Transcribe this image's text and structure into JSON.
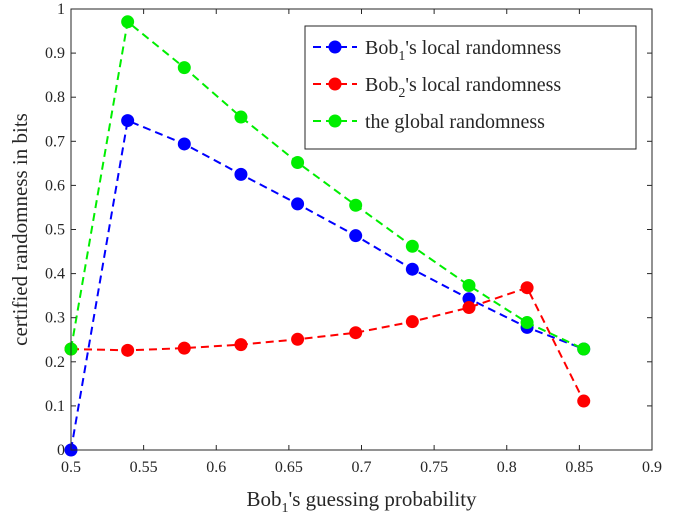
{
  "chart_data": {
    "type": "line",
    "xlabel": {
      "pre": "Bob",
      "sub": "1",
      "post": "'s guessing probability"
    },
    "ylabel": "certified randomness in bits",
    "xlim": [
      0.5,
      0.9
    ],
    "ylim": [
      0,
      1
    ],
    "xticks": [
      0.5,
      0.55,
      0.6,
      0.65,
      0.7,
      0.75,
      0.8,
      0.85,
      0.9
    ],
    "xtick_labels": [
      "0.5",
      "0.55",
      "0.6",
      "0.65",
      "0.7",
      "0.75",
      "0.8",
      "0.85",
      "0.9"
    ],
    "yticks": [
      0,
      0.1,
      0.2,
      0.3,
      0.4,
      0.5,
      0.6,
      0.7,
      0.8,
      0.9,
      1
    ],
    "ytick_labels": [
      "0",
      "0.1",
      "0.2",
      "0.3",
      "0.4",
      "0.5",
      "0.6",
      "0.7",
      "0.8",
      "0.9",
      "1"
    ],
    "grid": false,
    "legend_position": "top-right",
    "series": [
      {
        "key": "bob1",
        "legend": {
          "pre": "Bob",
          "sub": "1",
          "post": "'s local randomness"
        },
        "color": "#0000ff",
        "x": [
          0.5,
          0.539,
          0.578,
          0.617,
          0.656,
          0.696,
          0.735,
          0.774,
          0.814,
          0.853
        ],
        "y": [
          0.0,
          0.747,
          0.694,
          0.625,
          0.558,
          0.486,
          0.41,
          0.343,
          0.278,
          0.229
        ]
      },
      {
        "key": "bob2",
        "legend": {
          "pre": "Bob",
          "sub": "2",
          "post": "'s local randomness"
        },
        "color": "#ff0000",
        "x": [
          0.5,
          0.539,
          0.578,
          0.617,
          0.656,
          0.696,
          0.735,
          0.774,
          0.814,
          0.853
        ],
        "y": [
          0.229,
          0.226,
          0.231,
          0.239,
          0.251,
          0.266,
          0.291,
          0.323,
          0.368,
          0.111
        ]
      },
      {
        "key": "global",
        "legend": {
          "pre": "the global randomness",
          "sub": "",
          "post": ""
        },
        "color": "#00ee00",
        "x": [
          0.5,
          0.539,
          0.578,
          0.617,
          0.656,
          0.696,
          0.735,
          0.774,
          0.814,
          0.853
        ],
        "y": [
          0.229,
          0.971,
          0.867,
          0.755,
          0.652,
          0.555,
          0.462,
          0.373,
          0.289,
          0.229
        ]
      }
    ]
  }
}
